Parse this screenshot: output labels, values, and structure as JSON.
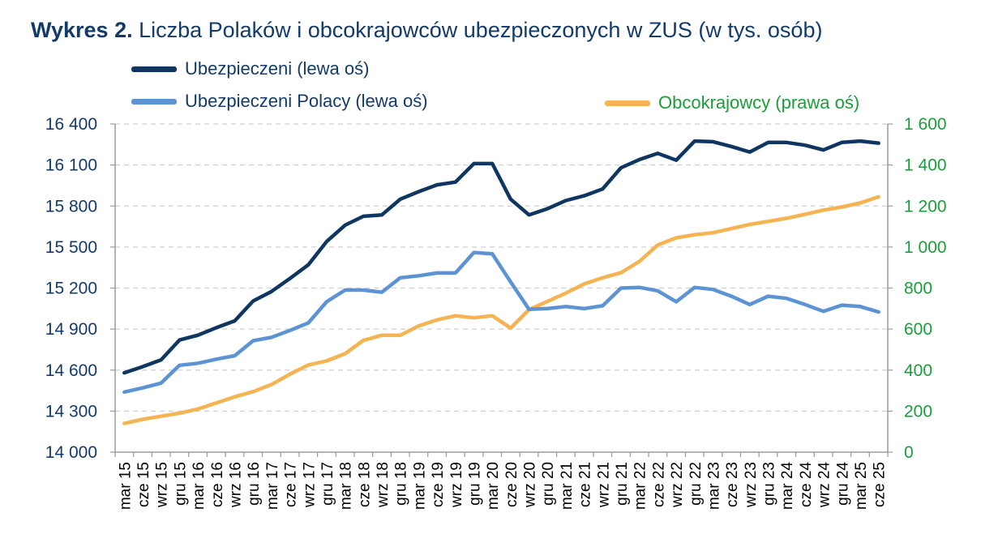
{
  "title": {
    "prefix": "Wykres 2.",
    "text": " Liczba Polaków i obcokrajowców ubezpieczonych w ZUS (w tys. osób)"
  },
  "legend": [
    {
      "label": "Ubezpieczeni (lewa oś)",
      "color": "#0f3661",
      "text_color": "#123a6b"
    },
    {
      "label": "Ubezpieczeni Polacy (lewa oś)",
      "color": "#5b93d4",
      "text_color": "#123a6b"
    },
    {
      "label": "Obcokrajowcy (prawa oś)",
      "color": "#f5b451",
      "text_color": "#1a9e3a"
    }
  ],
  "chart_data": {
    "type": "line",
    "categories": [
      "mar 15",
      "cze 15",
      "wrz 15",
      "gru 15",
      "mar 16",
      "cze 16",
      "wrz 16",
      "gru 16",
      "mar 17",
      "cze 17",
      "wrz 17",
      "gru 17",
      "mar 18",
      "cze 18",
      "wrz 18",
      "gru 18",
      "mar 19",
      "cze 19",
      "wrz 19",
      "gru 19",
      "mar 20",
      "cze 20",
      "wrz 20",
      "gru 20",
      "mar 21",
      "cze 21",
      "wrz 21",
      "gru 21",
      "mar 22",
      "cze 22",
      "wrz 22",
      "gru 22",
      "mar 23",
      "cze 23",
      "wrz 23",
      "gru 23",
      "mar 24",
      "cze 24",
      "wrz 24",
      "gru 24",
      "mar 25",
      "cze 25"
    ],
    "y_left": {
      "min": 14000,
      "max": 16400,
      "ticks": [
        "14 000",
        "14 300",
        "14 600",
        "14 900",
        "15 200",
        "15 500",
        "15 800",
        "16 100",
        "16 400"
      ],
      "tick_values": [
        14000,
        14300,
        14600,
        14900,
        15200,
        15500,
        15800,
        16100,
        16400
      ]
    },
    "y_right": {
      "min": 0,
      "max": 1600,
      "ticks": [
        "0",
        "200",
        "400",
        "600",
        "800",
        "1 000",
        "1 200",
        "1 400",
        "1 600"
      ],
      "tick_values": [
        0,
        200,
        400,
        600,
        800,
        1000,
        1200,
        1400,
        1600
      ]
    },
    "grid": "horizontal dashed",
    "series": [
      {
        "name": "Ubezpieczeni (lewa oś)",
        "axis": "left",
        "color": "#0f3661",
        "values": [
          14580,
          14625,
          14675,
          14820,
          14855,
          14910,
          14960,
          15105,
          15175,
          15270,
          15370,
          15540,
          15660,
          15725,
          15735,
          15850,
          15905,
          15955,
          15975,
          16110,
          16110,
          15850,
          15735,
          15780,
          15840,
          15875,
          15925,
          16080,
          16140,
          16185,
          16135,
          16275,
          16270,
          16235,
          16195,
          16265,
          16265,
          16245,
          16210,
          16265,
          16275,
          16260
        ]
      },
      {
        "name": "Ubezpieczeni Polacy (lewa oś)",
        "axis": "left",
        "color": "#5b93d4",
        "values": [
          14440,
          14470,
          14505,
          14635,
          14650,
          14680,
          14705,
          14815,
          14840,
          14890,
          14945,
          15100,
          15185,
          15185,
          15170,
          15275,
          15290,
          15310,
          15310,
          15460,
          15450,
          15245,
          15045,
          15050,
          15065,
          15050,
          15070,
          15200,
          15205,
          15180,
          15100,
          15205,
          15190,
          15140,
          15080,
          15140,
          15125,
          15080,
          15030,
          15075,
          15065,
          15025
        ]
      },
      {
        "name": "Obcokrajowcy (prawa oś)",
        "axis": "right",
        "color": "#f5b451",
        "values": [
          140,
          160,
          175,
          190,
          210,
          240,
          270,
          295,
          330,
          380,
          425,
          445,
          480,
          545,
          570,
          570,
          615,
          645,
          665,
          655,
          665,
          605,
          695,
          735,
          775,
          820,
          850,
          875,
          930,
          1010,
          1045,
          1060,
          1070,
          1090,
          1110,
          1125,
          1140,
          1160,
          1180,
          1195,
          1215,
          1245
        ]
      }
    ]
  }
}
